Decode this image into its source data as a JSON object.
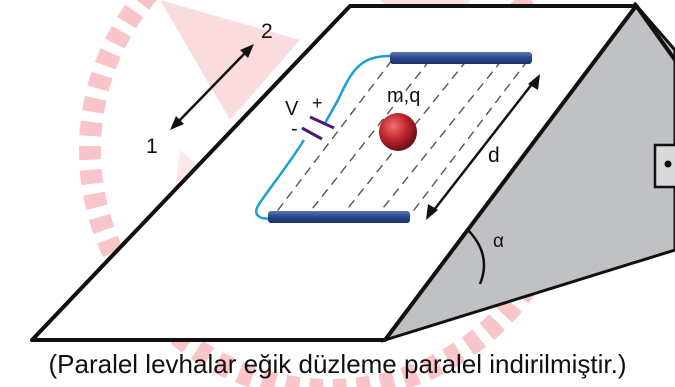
{
  "diagram": {
    "direction_label_1": "1",
    "direction_label_2": "2",
    "voltage_label": "V",
    "plus_sign": "+",
    "minus_sign": "-",
    "charge_label": "m,q",
    "distance_label": "d",
    "angle_label": "α"
  },
  "caption": "(Paralel levhalar eğik düzleme paralel indirilmiştir.)",
  "colors": {
    "plate": "#2c4a8c",
    "wire": "#1a9fd6",
    "charge": "#b8202a",
    "ramp_side": "#bfc1c4",
    "watermark": "#e8303a"
  }
}
